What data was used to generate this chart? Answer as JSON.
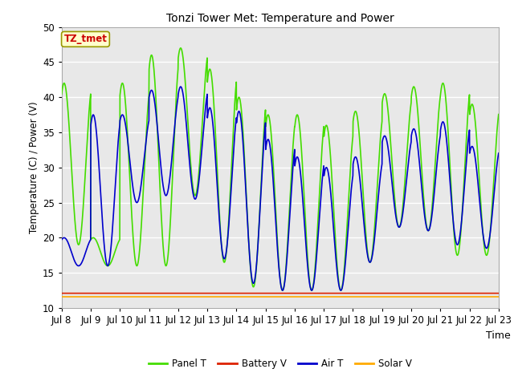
{
  "title": "Tonzi Tower Met: Temperature and Power",
  "xlabel": "Time",
  "ylabel": "Temperature (C) / Power (V)",
  "ylim": [
    10,
    50
  ],
  "annotation_text": "TZ_tmet",
  "annotation_color": "#cc0000",
  "annotation_bg": "#ffffcc",
  "annotation_border": "#999900",
  "fig_bg": "#ffffff",
  "plot_bg": "#e8e8e8",
  "grid_color": "#ffffff",
  "xtick_labels": [
    "Jul 8",
    "Jul 9",
    "Jul 10",
    "Jul 11",
    "Jul 12",
    "Jul 13",
    "Jul 14",
    "Jul 15",
    "Jul 16",
    "Jul 17",
    "Jul 18",
    "Jul 19",
    "Jul 20",
    "Jul 21",
    "Jul 22",
    "Jul 23"
  ],
  "colors": {
    "panel_t": "#44dd00",
    "battery_v": "#dd2200",
    "air_t": "#0000cc",
    "solar_v": "#ffaa00"
  },
  "legend_labels": [
    "Panel T",
    "Battery V",
    "Air T",
    "Solar V"
  ],
  "panel_peaks": [
    42,
    20,
    42,
    46,
    47,
    44,
    40,
    37.5,
    37.5,
    36,
    38,
    40.5,
    41.5,
    42,
    39,
    39.5
  ],
  "panel_mins": [
    19,
    16,
    16,
    16,
    26,
    16.5,
    13,
    12.5,
    12.5,
    12.5,
    16.5,
    21.5,
    21,
    17.5,
    17.5,
    22
  ],
  "air_peaks": [
    20,
    37.5,
    37.5,
    41,
    41.5,
    38.5,
    38,
    34,
    31.5,
    30,
    31.5,
    34.5,
    35.5,
    36.5,
    33,
    33.5
  ],
  "air_mins": [
    16,
    16,
    25,
    26,
    25.5,
    17,
    13.5,
    12.5,
    12.5,
    12.5,
    16.5,
    21.5,
    21,
    19,
    18.5,
    22
  ],
  "battery_v_level": 12.1,
  "solar_v_level": 11.6
}
